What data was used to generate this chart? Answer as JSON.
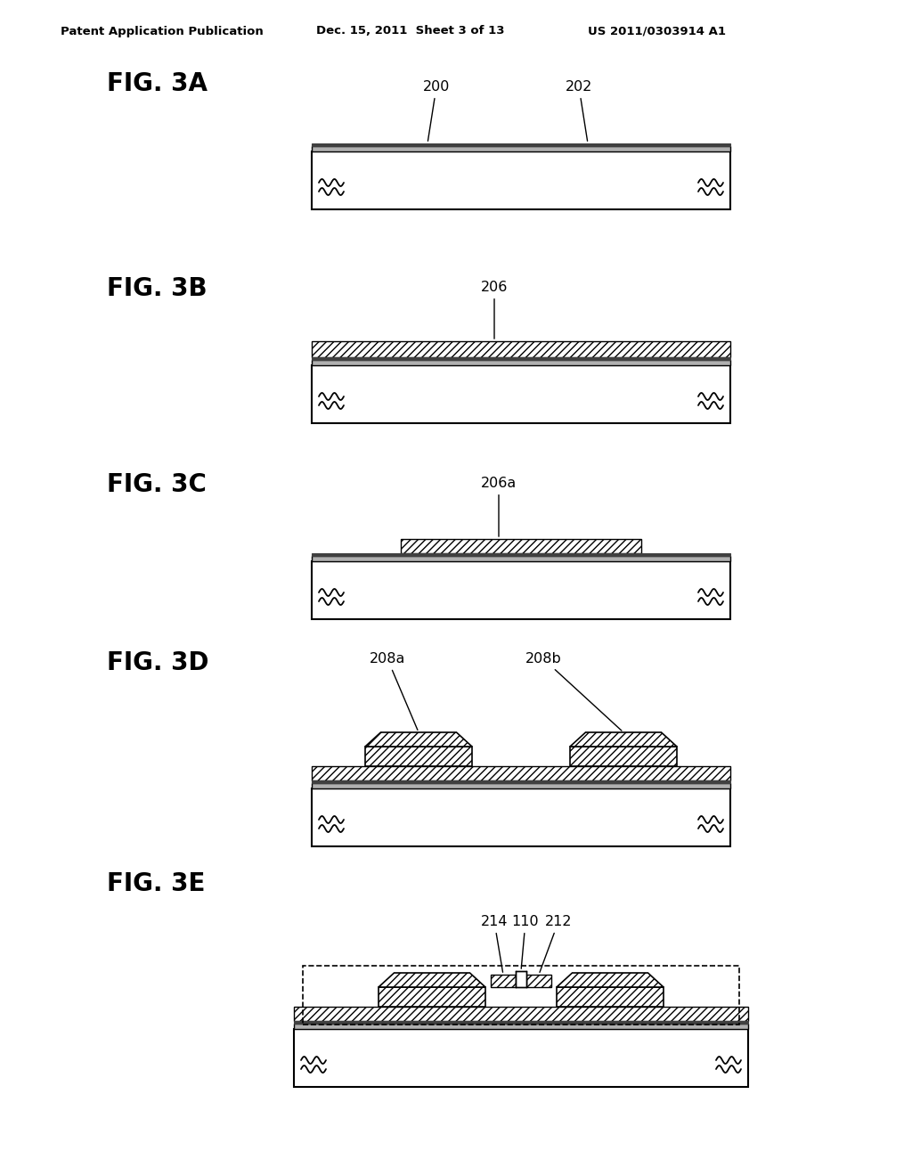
{
  "bg_color": "#ffffff",
  "header_left": "Patent Application Publication",
  "header_mid": "Dec. 15, 2011  Sheet 3 of 13",
  "header_right": "US 2011/0303914 A1",
  "line_color": "#000000"
}
